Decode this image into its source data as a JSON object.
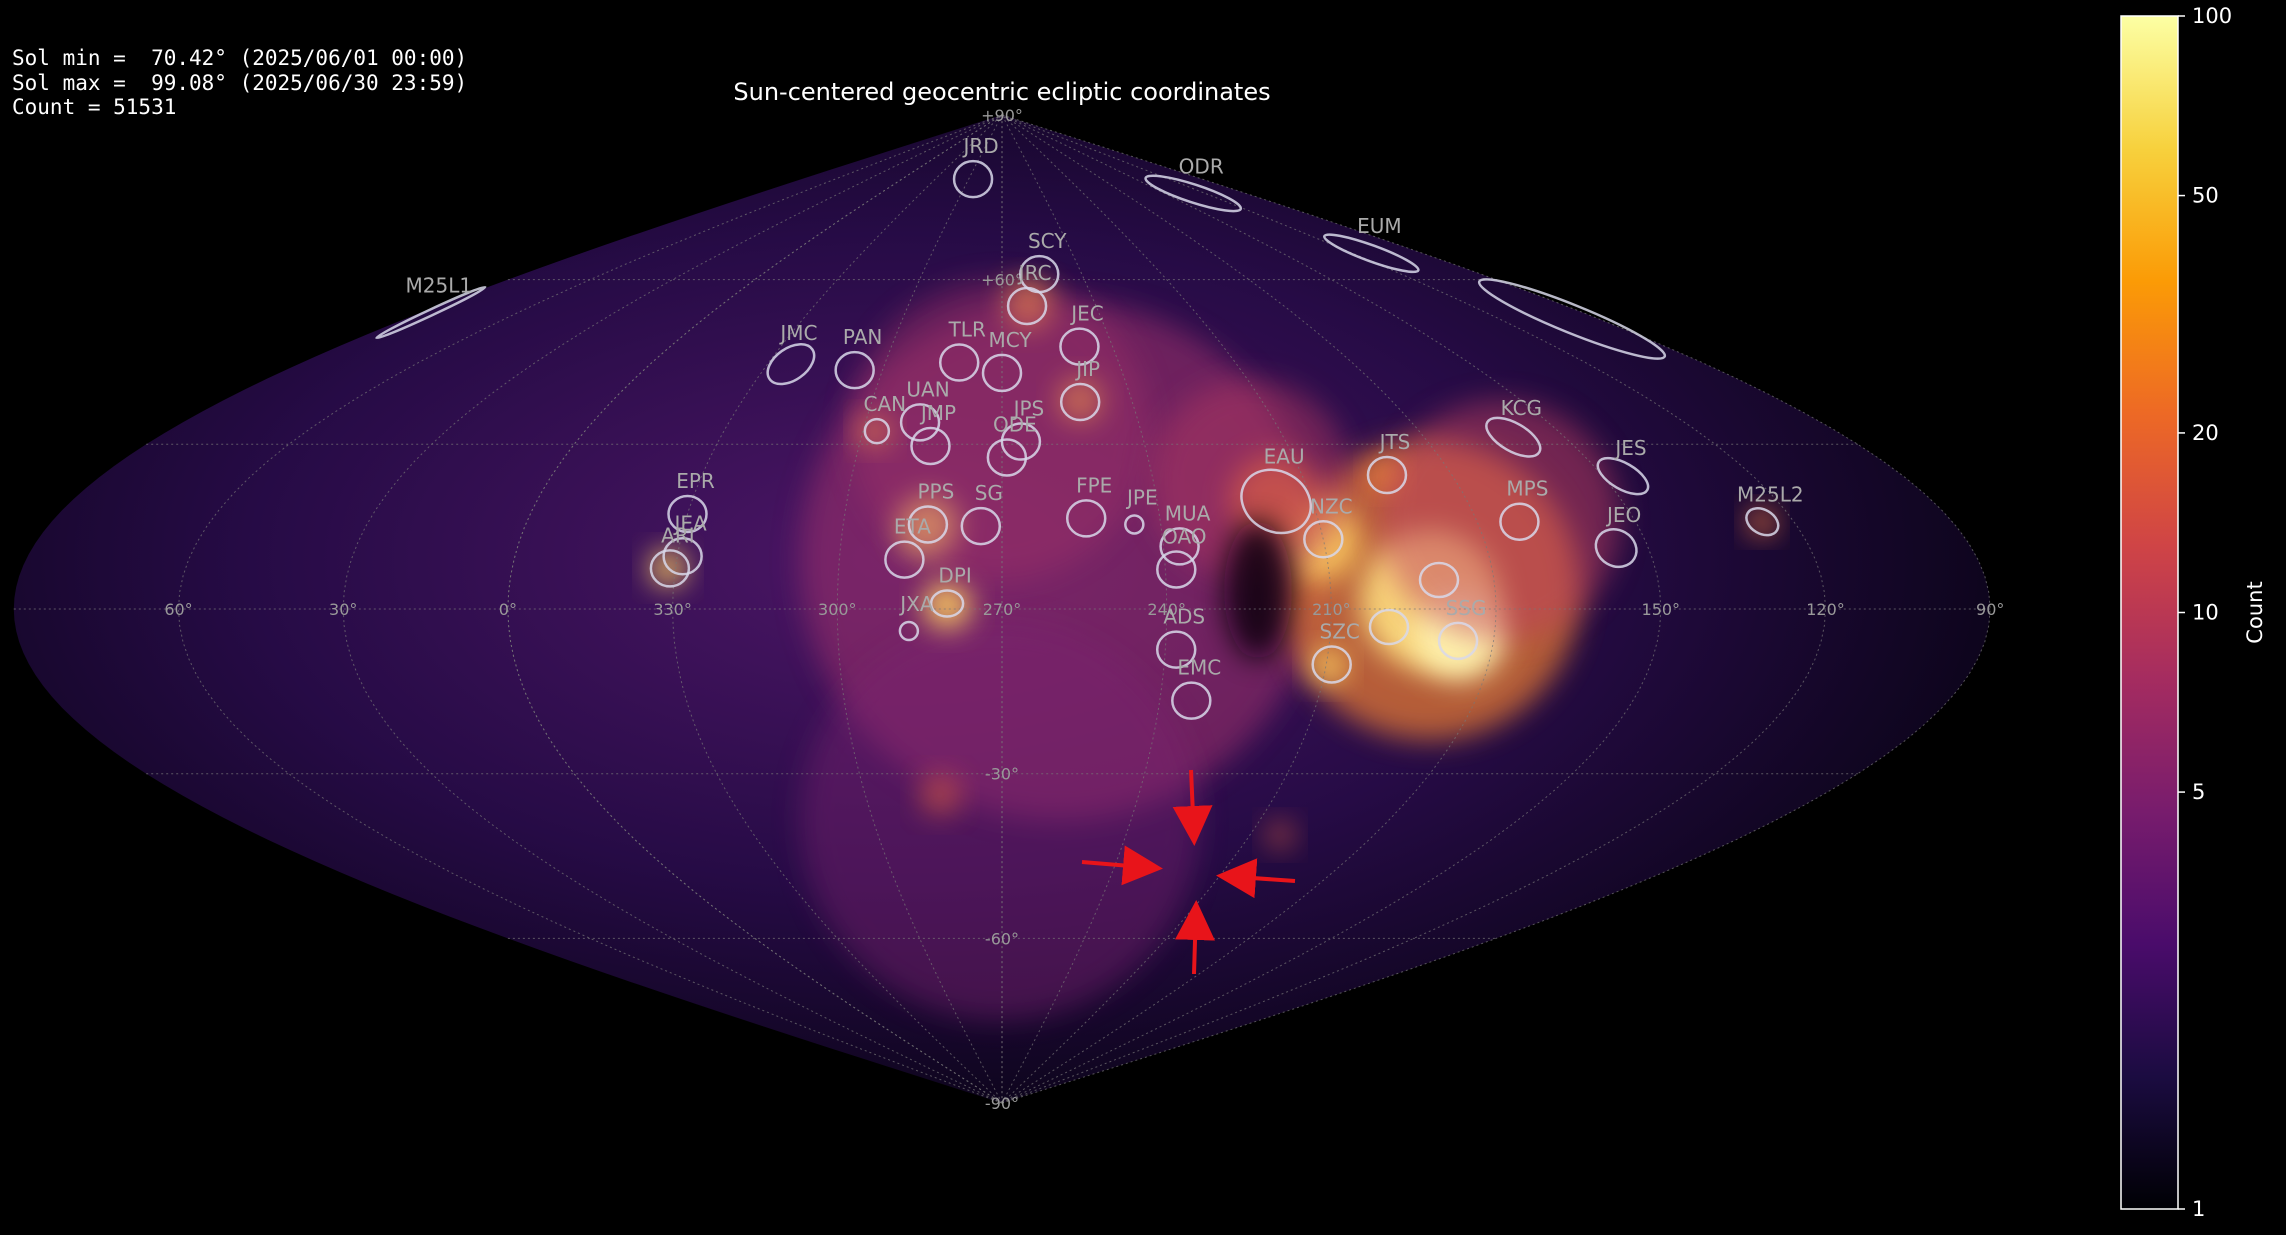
{
  "chart_data": {
    "type": "heatmap",
    "projection": "sinusoidal",
    "title": "Sun-centered geocentric ecliptic coordinates",
    "info_lines": [
      "Sol min =  70.42° (2025/06/01 00:00)",
      "Sol max =  99.08° (2025/06/30 23:59)",
      "Count = 51531"
    ],
    "projection_center_lon": 270,
    "ylim": [
      -90,
      90
    ],
    "grid": true,
    "xticks": [
      {
        "value": 60,
        "label": "60°"
      },
      {
        "value": 30,
        "label": "30°"
      },
      {
        "value": 0,
        "label": "0°"
      },
      {
        "value": 330,
        "label": "330°"
      },
      {
        "value": 300,
        "label": "300°"
      },
      {
        "value": 270,
        "label": "270°"
      },
      {
        "value": 240,
        "label": "240°"
      },
      {
        "value": 210,
        "label": "210°"
      },
      {
        "value": 150,
        "label": "150°"
      },
      {
        "value": 120,
        "label": "120°"
      },
      {
        "value": 90,
        "label": "90°"
      }
    ],
    "yticks": [
      {
        "value": 90,
        "label": "+90°"
      },
      {
        "value": 60,
        "label": "+60°"
      },
      {
        "value": -30,
        "label": "-30°"
      },
      {
        "value": -60,
        "label": "-60°"
      },
      {
        "value": -90,
        "label": "-90°"
      }
    ],
    "colorbar": {
      "label": "Count",
      "lim": [
        1,
        100
      ],
      "ticks": [
        1,
        5,
        10,
        20,
        50,
        100
      ],
      "log": true,
      "colormap": "inferno"
    },
    "ellipse_color": "#d8d8ea",
    "showers": [
      {
        "name": "JRD",
        "lon": 296,
        "lat": 78.3
      },
      {
        "name": "ODR",
        "lon": 129,
        "lat": 75.7
      },
      {
        "name": "EUM",
        "lon": 112,
        "lat": 64.8
      },
      {
        "name": "M25L1",
        "lon": 87,
        "lat": 54
      },
      {
        "name": "SCY",
        "lon": 256,
        "lat": 61
      },
      {
        "name": "JRC",
        "lon": 262,
        "lat": 55.2
      },
      {
        "name": "JEC",
        "lon": 249,
        "lat": 47.8
      },
      {
        "name": "MCY",
        "lon": 270,
        "lat": 43
      },
      {
        "name": "TLR",
        "lon": 281,
        "lat": 44.9
      },
      {
        "name": "JMC",
        "lon": 324,
        "lat": 44.6
      },
      {
        "name": "PAN",
        "lon": 307,
        "lat": 43.5
      },
      {
        "name": "JIP",
        "lon": 252,
        "lat": 37.7
      },
      {
        "name": "UAN",
        "lon": 288,
        "lat": 34
      },
      {
        "name": "CAN",
        "lon": 297,
        "lat": 32.4
      },
      {
        "name": "JMP",
        "lon": 285,
        "lat": 29.7
      },
      {
        "name": "JPS",
        "lon": 266,
        "lat": 30.5
      },
      {
        "name": "ODE",
        "lon": 269,
        "lat": 27.6
      },
      {
        "name": "EPR",
        "lon": 330,
        "lat": 17.3
      },
      {
        "name": "JEA",
        "lon": 329,
        "lat": 9.6
      },
      {
        "name": "ARI",
        "lon": 331,
        "lat": 7.4
      },
      {
        "name": "PPS",
        "lon": 284,
        "lat": 15.4
      },
      {
        "name": "SG",
        "lon": 274,
        "lat": 15.1
      },
      {
        "name": "ETA",
        "lon": 288,
        "lat": 9
      },
      {
        "name": "DPI",
        "lon": 280,
        "lat": 1
      },
      {
        "name": "JXA",
        "lon": 287,
        "lat": -4
      },
      {
        "name": "FPE",
        "lon": 254,
        "lat": 16.5
      },
      {
        "name": "JPE",
        "lon": 245,
        "lat": 15.4
      },
      {
        "name": "MUA",
        "lon": 237,
        "lat": 11.4
      },
      {
        "name": "OAO",
        "lon": 238,
        "lat": 7.2
      },
      {
        "name": "ADS",
        "lon": 238,
        "lat": -7.4
      },
      {
        "name": "EMC",
        "lon": 234,
        "lat": -16.7
      },
      {
        "name": "EAU",
        "lon": 217,
        "lat": 19.6
      },
      {
        "name": "NZC",
        "lon": 210,
        "lat": 12.7
      },
      {
        "name": "JTS",
        "lon": 193,
        "lat": 24.4
      },
      {
        "name": "SZC",
        "lon": 209,
        "lat": -10.1
      },
      {
        "name": "SSG",
        "lon": 186.5,
        "lat": -5.8
      },
      {
        "name": "KCG",
        "lon": 161,
        "lat": 31.3
      },
      {
        "name": "MPS",
        "lon": 172,
        "lat": 15.9
      },
      {
        "name": "JES",
        "lon": 146,
        "lat": 24.2
      },
      {
        "name": "JEO",
        "lon": 156,
        "lat": 11.1
      },
      {
        "name": "M25L2",
        "lon": 126,
        "lat": 15.9
      }
    ]
  }
}
